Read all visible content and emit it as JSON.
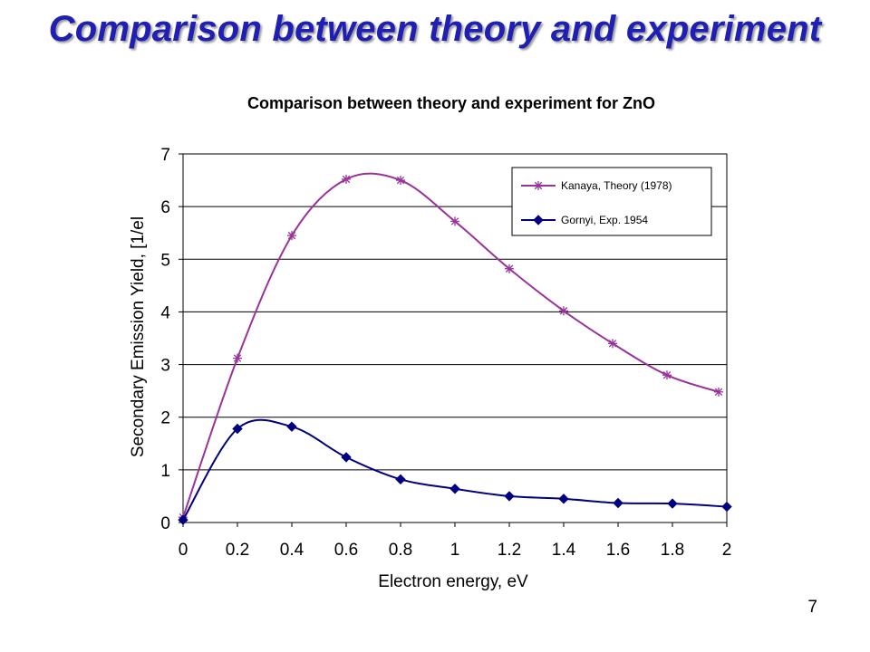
{
  "slide": {
    "title": "Comparison between theory and experiment",
    "page_number": "7"
  },
  "colors": {
    "title": "#1f1fb4",
    "theory_series": "#993399",
    "experiment_series": "#000080",
    "gridline": "#000000"
  },
  "chart_data": {
    "type": "line",
    "title": "Comparison between theory and experiment for ZnO",
    "xlabel": "Electron energy, eV",
    "ylabel": "Secondary Emission Yield, [1/el",
    "xlim": [
      0,
      2
    ],
    "ylim": [
      0,
      7
    ],
    "x_ticks": [
      "0",
      "0.2",
      "0.4",
      "0.6",
      "0.8",
      "1",
      "1.2",
      "1.4",
      "1.6",
      "1.8",
      "2"
    ],
    "y_ticks": [
      "0",
      "1",
      "2",
      "3",
      "4",
      "5",
      "6",
      "7"
    ],
    "grid": "horizontal",
    "legend_position": "top-right",
    "series": [
      {
        "name": "Kanaya, Theory (1978)",
        "marker": "asterisk",
        "color": "#993399",
        "points": [
          [
            0,
            0.1
          ],
          [
            0.2,
            3.12
          ],
          [
            0.4,
            5.45
          ],
          [
            0.6,
            6.52
          ],
          [
            0.8,
            6.5
          ],
          [
            1.0,
            5.72
          ],
          [
            1.2,
            4.82
          ],
          [
            1.4,
            4.02
          ],
          [
            1.58,
            3.4
          ],
          [
            1.78,
            2.8
          ],
          [
            1.97,
            2.48
          ]
        ]
      },
      {
        "name": "Gornyi, Exp. 1954",
        "marker": "diamond",
        "color": "#000080",
        "points": [
          [
            0,
            0.05
          ],
          [
            0.2,
            1.78
          ],
          [
            0.4,
            1.82
          ],
          [
            0.6,
            1.24
          ],
          [
            0.8,
            0.82
          ],
          [
            1.0,
            0.64
          ],
          [
            1.2,
            0.5
          ],
          [
            1.4,
            0.45
          ],
          [
            1.6,
            0.37
          ],
          [
            1.8,
            0.36
          ],
          [
            2.0,
            0.3
          ]
        ]
      }
    ]
  }
}
